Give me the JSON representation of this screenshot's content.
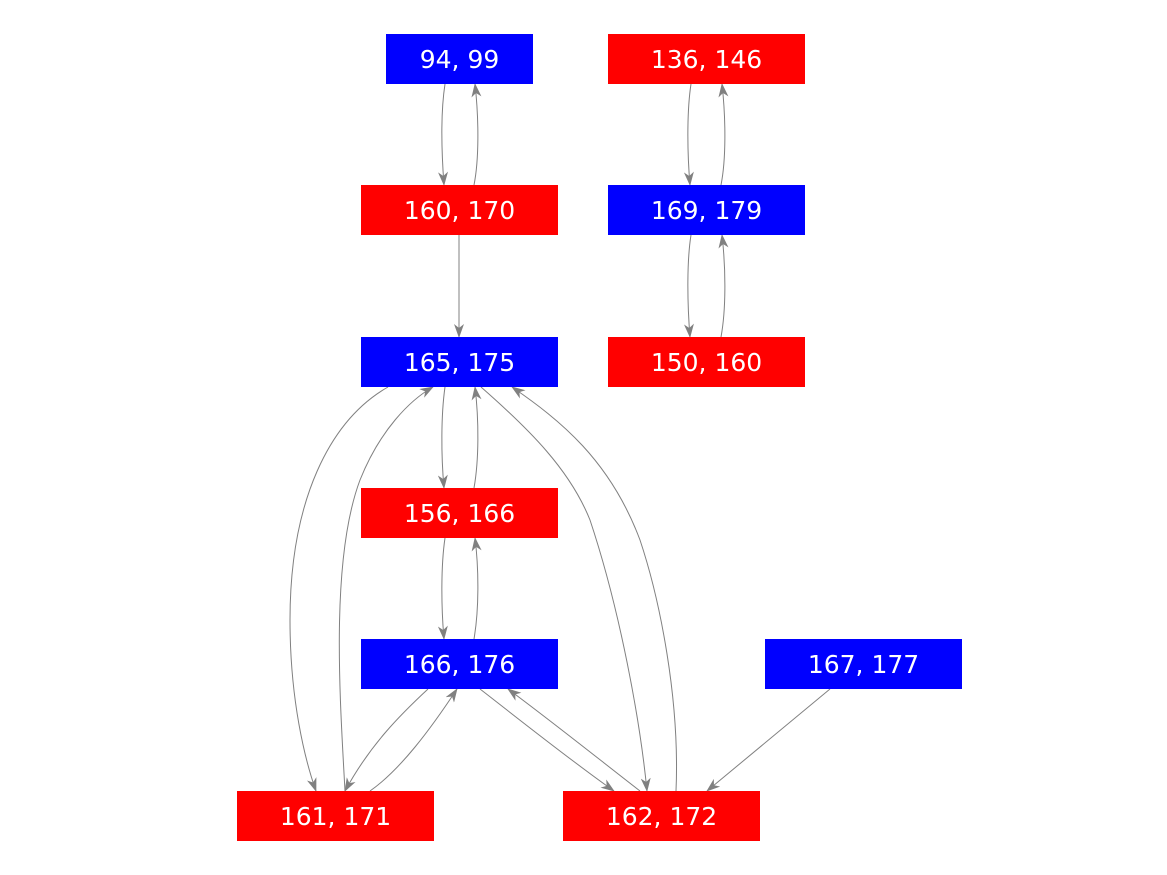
{
  "colors": {
    "blue": "#0000ff",
    "red": "#ff0000",
    "edge": "#808080",
    "label": "#ffffff"
  },
  "nodes": [
    {
      "id": "n94",
      "label": "94, 99",
      "color": "blue"
    },
    {
      "id": "n136",
      "label": "136, 146",
      "color": "red"
    },
    {
      "id": "n160",
      "label": "160, 170",
      "color": "red"
    },
    {
      "id": "n169",
      "label": "169, 179",
      "color": "blue"
    },
    {
      "id": "n165",
      "label": "165, 175",
      "color": "blue"
    },
    {
      "id": "n150",
      "label": "150, 160",
      "color": "red"
    },
    {
      "id": "n156",
      "label": "156, 166",
      "color": "red"
    },
    {
      "id": "n166",
      "label": "166, 176",
      "color": "blue"
    },
    {
      "id": "n167",
      "label": "167, 177",
      "color": "blue"
    },
    {
      "id": "n161",
      "label": "161, 171",
      "color": "red"
    },
    {
      "id": "n162",
      "label": "162, 172",
      "color": "red"
    }
  ],
  "edges": [
    {
      "from": "n94",
      "to": "n160"
    },
    {
      "from": "n160",
      "to": "n94"
    },
    {
      "from": "n136",
      "to": "n169"
    },
    {
      "from": "n169",
      "to": "n136"
    },
    {
      "from": "n169",
      "to": "n150"
    },
    {
      "from": "n150",
      "to": "n169"
    },
    {
      "from": "n160",
      "to": "n165"
    },
    {
      "from": "n165",
      "to": "n156"
    },
    {
      "from": "n156",
      "to": "n165"
    },
    {
      "from": "n156",
      "to": "n166"
    },
    {
      "from": "n166",
      "to": "n156"
    },
    {
      "from": "n165",
      "to": "n161"
    },
    {
      "from": "n161",
      "to": "n165"
    },
    {
      "from": "n165",
      "to": "n162"
    },
    {
      "from": "n162",
      "to": "n165"
    },
    {
      "from": "n166",
      "to": "n161"
    },
    {
      "from": "n161",
      "to": "n166"
    },
    {
      "from": "n166",
      "to": "n162"
    },
    {
      "from": "n162",
      "to": "n166"
    },
    {
      "from": "n167",
      "to": "n162"
    }
  ]
}
